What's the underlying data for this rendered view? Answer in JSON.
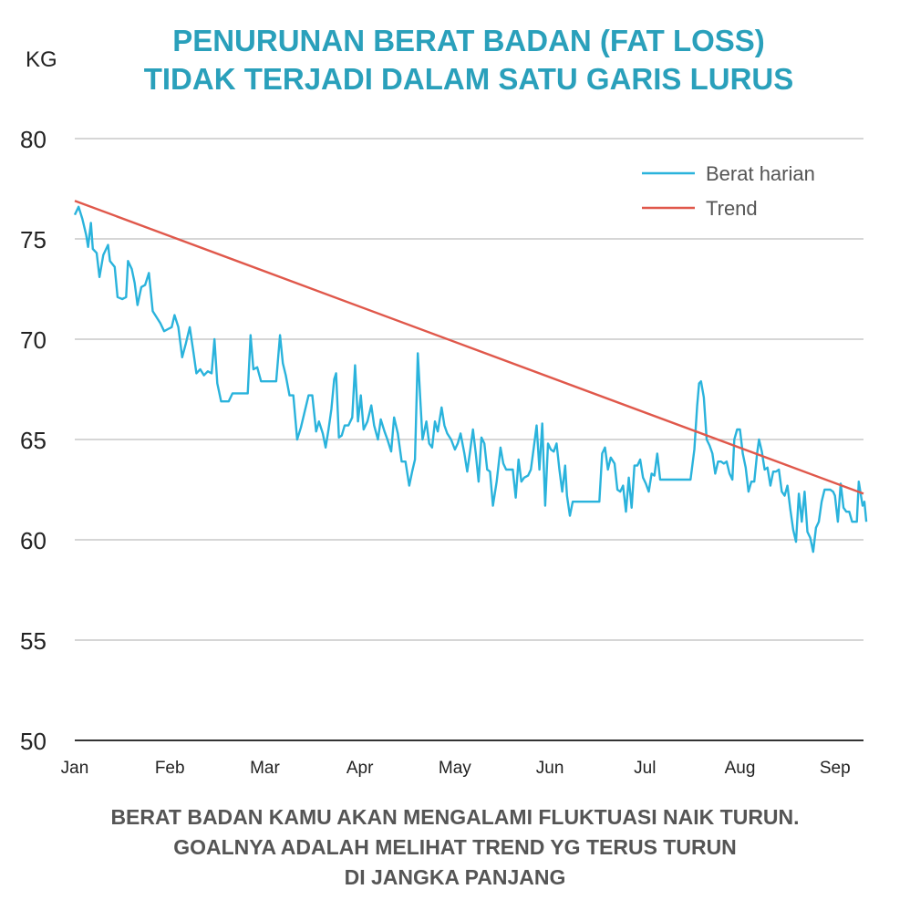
{
  "title_lines": [
    "PENURUNAN BERAT BADAN (FAT LOSS)",
    "TIDAK TERJADI DALAM SATU GARIS LURUS"
  ],
  "footer_lines": [
    "BERAT BADAN KAMU AKAN MENGALAMI FLUKTUASI NAIK TURUN.",
    "GOALNYA ADALAH MELIHAT TREND YG TERUS TURUN",
    "DI JANGKA PANJANG"
  ],
  "colors": {
    "title": "#2aa0bb",
    "series_daily": "#2ab3dc",
    "series_trend": "#e0584b",
    "grid": "#c8c8c8",
    "footer": "#555555"
  },
  "chart_data": {
    "type": "line",
    "ylabel": "KG",
    "ylim": [
      50,
      80
    ],
    "yticks": [
      50,
      55,
      60,
      65,
      70,
      75,
      80
    ],
    "xlabel": "",
    "xticks": [
      "Jan",
      "Feb",
      "Mar",
      "Apr",
      "May",
      "Jun",
      "Jul",
      "Aug",
      "Sep"
    ],
    "xlim": [
      0,
      8.3
    ],
    "grid": true,
    "legend_position": "top-right",
    "series": [
      {
        "name": "Berat harian",
        "color": "#2ab3dc",
        "points": [
          [
            0.0,
            76.2
          ],
          [
            0.04,
            76.6
          ],
          [
            0.08,
            76.0
          ],
          [
            0.12,
            75.2
          ],
          [
            0.14,
            74.6
          ],
          [
            0.17,
            75.8
          ],
          [
            0.19,
            74.5
          ],
          [
            0.23,
            74.3
          ],
          [
            0.26,
            73.1
          ],
          [
            0.3,
            74.2
          ],
          [
            0.35,
            74.7
          ],
          [
            0.37,
            73.9
          ],
          [
            0.42,
            73.6
          ],
          [
            0.45,
            72.1
          ],
          [
            0.5,
            72.0
          ],
          [
            0.54,
            72.1
          ],
          [
            0.56,
            73.9
          ],
          [
            0.6,
            73.5
          ],
          [
            0.63,
            72.8
          ],
          [
            0.66,
            71.7
          ],
          [
            0.7,
            72.6
          ],
          [
            0.74,
            72.7
          ],
          [
            0.78,
            73.3
          ],
          [
            0.82,
            71.4
          ],
          [
            0.86,
            71.1
          ],
          [
            0.9,
            70.8
          ],
          [
            0.94,
            70.4
          ],
          [
            0.98,
            70.5
          ],
          [
            1.02,
            70.6
          ],
          [
            1.05,
            71.2
          ],
          [
            1.09,
            70.6
          ],
          [
            1.13,
            69.1
          ],
          [
            1.17,
            69.8
          ],
          [
            1.21,
            70.6
          ],
          [
            1.25,
            69.3
          ],
          [
            1.28,
            68.3
          ],
          [
            1.32,
            68.5
          ],
          [
            1.36,
            68.2
          ],
          [
            1.4,
            68.4
          ],
          [
            1.44,
            68.3
          ],
          [
            1.47,
            70.0
          ],
          [
            1.5,
            67.8
          ],
          [
            1.54,
            66.9
          ],
          [
            1.58,
            66.9
          ],
          [
            1.62,
            66.9
          ],
          [
            1.66,
            67.3
          ],
          [
            1.7,
            67.3
          ],
          [
            1.74,
            67.3
          ],
          [
            1.78,
            67.3
          ],
          [
            1.82,
            67.3
          ],
          [
            1.85,
            70.2
          ],
          [
            1.88,
            68.5
          ],
          [
            1.92,
            68.6
          ],
          [
            1.96,
            67.9
          ],
          [
            2.0,
            67.9
          ],
          [
            2.04,
            67.9
          ],
          [
            2.08,
            67.9
          ],
          [
            2.12,
            67.9
          ],
          [
            2.16,
            70.2
          ],
          [
            2.19,
            68.8
          ],
          [
            2.22,
            68.2
          ],
          [
            2.26,
            67.2
          ],
          [
            2.3,
            67.2
          ],
          [
            2.34,
            65.0
          ],
          [
            2.38,
            65.6
          ],
          [
            2.42,
            66.4
          ],
          [
            2.46,
            67.2
          ],
          [
            2.5,
            67.2
          ],
          [
            2.54,
            65.4
          ],
          [
            2.57,
            65.9
          ],
          [
            2.61,
            65.3
          ],
          [
            2.64,
            64.6
          ],
          [
            2.67,
            65.5
          ],
          [
            2.7,
            66.5
          ],
          [
            2.73,
            68.0
          ],
          [
            2.75,
            68.3
          ],
          [
            2.78,
            65.1
          ],
          [
            2.81,
            65.2
          ],
          [
            2.84,
            65.7
          ],
          [
            2.88,
            65.7
          ],
          [
            2.92,
            66.1
          ],
          [
            2.95,
            68.7
          ],
          [
            2.98,
            65.9
          ],
          [
            3.01,
            67.2
          ],
          [
            3.04,
            65.5
          ],
          [
            3.08,
            65.9
          ],
          [
            3.12,
            66.7
          ],
          [
            3.15,
            65.7
          ],
          [
            3.19,
            65.0
          ],
          [
            3.22,
            66.0
          ],
          [
            3.26,
            65.4
          ],
          [
            3.29,
            65.0
          ],
          [
            3.33,
            64.4
          ],
          [
            3.36,
            66.1
          ],
          [
            3.4,
            65.3
          ],
          [
            3.44,
            63.9
          ],
          [
            3.48,
            63.9
          ],
          [
            3.52,
            62.7
          ],
          [
            3.55,
            63.4
          ],
          [
            3.58,
            64.0
          ],
          [
            3.61,
            69.3
          ],
          [
            3.64,
            66.7
          ],
          [
            3.66,
            65.0
          ],
          [
            3.7,
            65.9
          ],
          [
            3.73,
            64.8
          ],
          [
            3.76,
            64.6
          ],
          [
            3.79,
            65.9
          ],
          [
            3.82,
            65.4
          ],
          [
            3.86,
            66.6
          ],
          [
            3.89,
            65.7
          ],
          [
            3.92,
            65.3
          ],
          [
            3.96,
            65.0
          ],
          [
            4.0,
            64.5
          ],
          [
            4.03,
            64.8
          ],
          [
            4.06,
            65.3
          ],
          [
            4.1,
            64.3
          ],
          [
            4.13,
            63.4
          ],
          [
            4.16,
            64.4
          ],
          [
            4.19,
            65.5
          ],
          [
            4.22,
            64.3
          ],
          [
            4.25,
            62.9
          ],
          [
            4.28,
            65.1
          ],
          [
            4.31,
            64.8
          ],
          [
            4.34,
            63.5
          ],
          [
            4.37,
            63.4
          ],
          [
            4.4,
            61.7
          ],
          [
            4.44,
            62.9
          ],
          [
            4.48,
            64.6
          ],
          [
            4.51,
            63.8
          ],
          [
            4.54,
            63.5
          ],
          [
            4.58,
            63.5
          ],
          [
            4.61,
            63.5
          ],
          [
            4.64,
            62.1
          ],
          [
            4.67,
            64.0
          ],
          [
            4.7,
            62.9
          ],
          [
            4.73,
            63.1
          ],
          [
            4.77,
            63.2
          ],
          [
            4.8,
            63.5
          ],
          [
            4.83,
            64.6
          ],
          [
            4.86,
            65.7
          ],
          [
            4.89,
            63.5
          ],
          [
            4.92,
            65.8
          ],
          [
            4.95,
            61.7
          ],
          [
            4.98,
            64.8
          ],
          [
            5.01,
            64.5
          ],
          [
            5.04,
            64.4
          ],
          [
            5.07,
            64.8
          ],
          [
            5.1,
            63.5
          ],
          [
            5.13,
            62.4
          ],
          [
            5.16,
            63.7
          ],
          [
            5.18,
            62.2
          ],
          [
            5.21,
            61.2
          ],
          [
            5.24,
            61.9
          ],
          [
            5.28,
            61.9
          ],
          [
            5.32,
            61.9
          ],
          [
            5.36,
            61.9
          ],
          [
            5.4,
            61.9
          ],
          [
            5.44,
            61.9
          ],
          [
            5.48,
            61.9
          ],
          [
            5.52,
            61.9
          ],
          [
            5.55,
            64.3
          ],
          [
            5.58,
            64.6
          ],
          [
            5.61,
            63.5
          ],
          [
            5.64,
            64.1
          ],
          [
            5.68,
            63.8
          ],
          [
            5.71,
            62.5
          ],
          [
            5.74,
            62.4
          ],
          [
            5.77,
            62.7
          ],
          [
            5.8,
            61.4
          ],
          [
            5.83,
            63.1
          ],
          [
            5.86,
            61.6
          ],
          [
            5.89,
            63.7
          ],
          [
            5.92,
            63.7
          ],
          [
            5.95,
            64.0
          ],
          [
            5.98,
            63.1
          ],
          [
            6.01,
            62.8
          ],
          [
            6.04,
            62.4
          ],
          [
            6.07,
            63.3
          ],
          [
            6.1,
            63.2
          ],
          [
            6.13,
            64.3
          ],
          [
            6.16,
            63.0
          ],
          [
            6.2,
            63.0
          ],
          [
            6.24,
            63.0
          ],
          [
            6.28,
            63.0
          ],
          [
            6.32,
            63.0
          ],
          [
            6.36,
            63.0
          ],
          [
            6.4,
            63.0
          ],
          [
            6.44,
            63.0
          ],
          [
            6.48,
            63.0
          ],
          [
            6.52,
            64.5
          ],
          [
            6.55,
            66.7
          ],
          [
            6.57,
            67.8
          ],
          [
            6.59,
            67.9
          ],
          [
            6.62,
            67.1
          ],
          [
            6.65,
            65.0
          ],
          [
            6.68,
            64.7
          ],
          [
            6.71,
            64.3
          ],
          [
            6.74,
            63.3
          ],
          [
            6.77,
            63.9
          ],
          [
            6.8,
            63.9
          ],
          [
            6.83,
            63.8
          ],
          [
            6.86,
            63.9
          ],
          [
            6.89,
            63.3
          ],
          [
            6.92,
            63.0
          ],
          [
            6.94,
            65.0
          ],
          [
            6.97,
            65.5
          ],
          [
            7.0,
            65.5
          ],
          [
            7.03,
            64.3
          ],
          [
            7.06,
            63.6
          ],
          [
            7.09,
            62.4
          ],
          [
            7.12,
            62.9
          ],
          [
            7.15,
            62.9
          ],
          [
            7.18,
            64.3
          ],
          [
            7.2,
            65.0
          ],
          [
            7.23,
            64.4
          ],
          [
            7.26,
            63.5
          ],
          [
            7.29,
            63.6
          ],
          [
            7.32,
            62.7
          ],
          [
            7.35,
            63.4
          ],
          [
            7.38,
            63.4
          ],
          [
            7.41,
            63.5
          ],
          [
            7.44,
            62.4
          ],
          [
            7.47,
            62.2
          ],
          [
            7.5,
            62.7
          ],
          [
            7.53,
            61.5
          ],
          [
            7.56,
            60.5
          ],
          [
            7.59,
            59.9
          ],
          [
            7.62,
            62.3
          ],
          [
            7.65,
            60.9
          ],
          [
            7.68,
            62.4
          ],
          [
            7.71,
            60.4
          ],
          [
            7.74,
            60.1
          ],
          [
            7.77,
            59.4
          ],
          [
            7.8,
            60.6
          ],
          [
            7.83,
            60.9
          ],
          [
            7.86,
            61.9
          ],
          [
            7.89,
            62.5
          ],
          [
            7.92,
            62.5
          ],
          [
            7.95,
            62.5
          ],
          [
            7.98,
            62.4
          ],
          [
            8.0,
            62.2
          ],
          [
            8.03,
            60.9
          ],
          [
            8.06,
            62.8
          ],
          [
            8.09,
            61.6
          ],
          [
            8.12,
            61.4
          ],
          [
            8.15,
            61.4
          ],
          [
            8.18,
            60.9
          ],
          [
            8.21,
            60.9
          ],
          [
            8.23,
            60.9
          ],
          [
            8.25,
            62.9
          ],
          [
            8.27,
            62.3
          ],
          [
            8.29,
            61.7
          ],
          [
            8.31,
            61.9
          ],
          [
            8.33,
            60.9
          ]
        ]
      },
      {
        "name": "Trend",
        "color": "#e0584b",
        "points": [
          [
            0.0,
            76.9
          ],
          [
            8.3,
            62.3
          ]
        ]
      }
    ]
  }
}
